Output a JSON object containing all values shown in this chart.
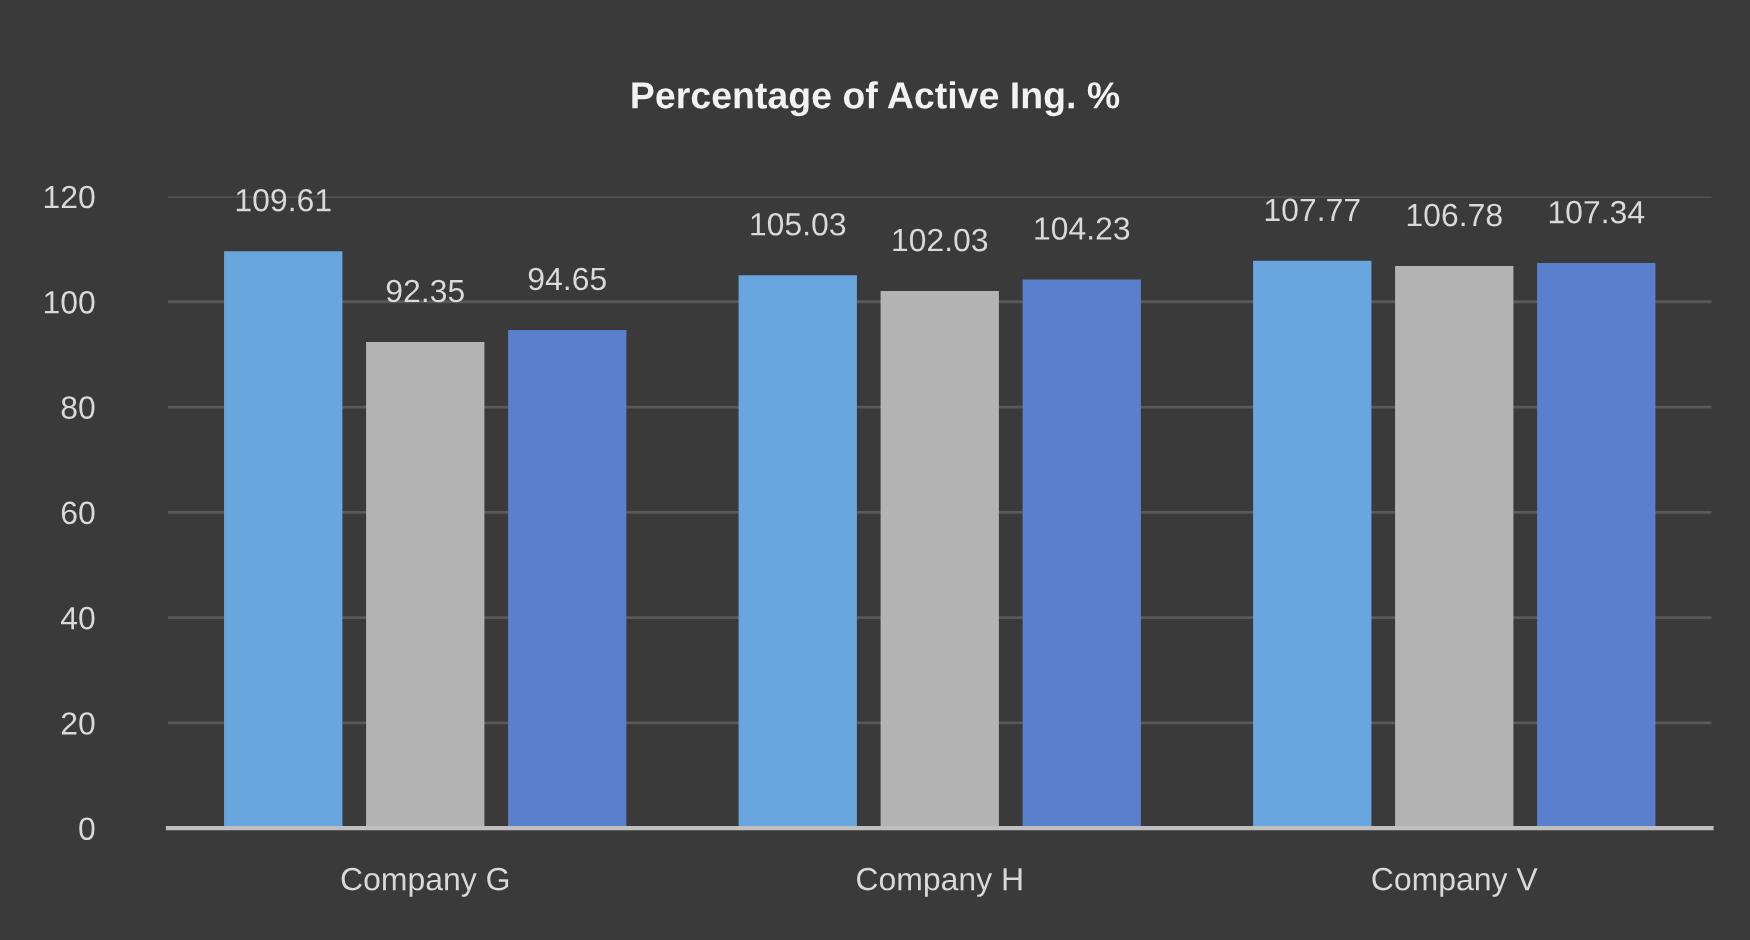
{
  "chart_data": {
    "type": "bar",
    "title": "Percentage of Active Ing. %",
    "categories": [
      "Company G",
      "Company H",
      "Company V"
    ],
    "series": [
      {
        "color": "#69a6e0",
        "values": [
          109.61,
          105.03,
          107.77
        ]
      },
      {
        "color": "#b3b3b3",
        "values": [
          92.35,
          102.03,
          106.78
        ]
      },
      {
        "color": "#5a7fcc",
        "values": [
          94.65,
          104.23,
          107.34
        ]
      }
    ],
    "ylim": [
      0,
      120
    ],
    "yticks": [
      0,
      20,
      40,
      60,
      80,
      100,
      120
    ],
    "grid": "y",
    "data_labels": true
  }
}
